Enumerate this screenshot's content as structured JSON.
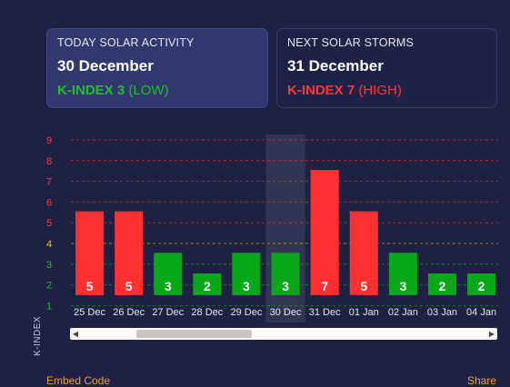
{
  "today": {
    "title": "TODAY SOLAR ACTIVITY",
    "date": "30 December",
    "kindex": "K-INDEX 3",
    "level": "(LOW)"
  },
  "next": {
    "title": "NEXT SOLAR STORMS",
    "date": "31 December",
    "kindex": "K-INDEX 7",
    "level": "(HIGH)"
  },
  "colors": {
    "background": "#1e2044",
    "low": "#09a81a",
    "high": "#ff3030",
    "link": "#f0a020"
  },
  "chart_data": {
    "type": "bar",
    "ylabel": "K-INDEX",
    "ylim": [
      1,
      9
    ],
    "y_ticks": [
      "1",
      "2",
      "3",
      "4",
      "5",
      "6",
      "7",
      "8",
      "9"
    ],
    "categories": [
      "25 Dec",
      "26 Dec",
      "27 Dec",
      "28 Dec",
      "29 Dec",
      "30 Dec",
      "31 Dec",
      "01 Jan",
      "02 Jan",
      "03 Jan",
      "04 Jan"
    ],
    "values": [
      5,
      5,
      3,
      2,
      3,
      3,
      7,
      5,
      3,
      2,
      2
    ],
    "highlighted_category": "30 Dec",
    "grid": true
  },
  "footer": {
    "embed_label": "Embed Code",
    "share_label": "Share"
  }
}
